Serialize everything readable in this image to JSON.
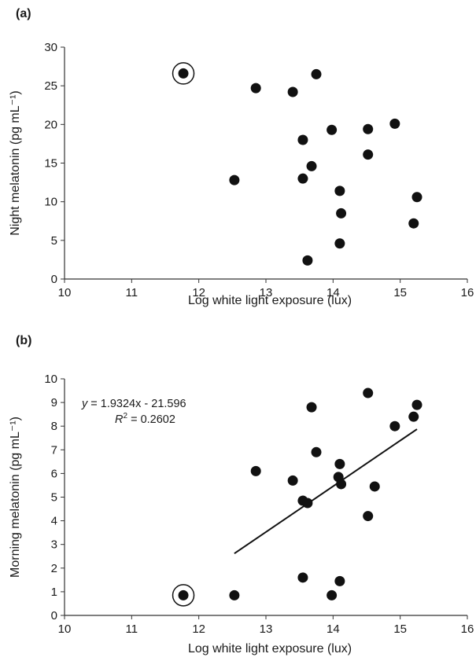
{
  "chart_data": [
    {
      "panel": "(a)",
      "type": "scatter",
      "xlabel": "Log white light exposure (lux)",
      "ylabel": "Night melatonin (pg mL⁻¹)",
      "xlim": [
        10,
        16
      ],
      "ylim": [
        0,
        30
      ],
      "xticks": [
        "10",
        "11",
        "12",
        "13",
        "14",
        "15",
        "16"
      ],
      "yticks": [
        "0",
        "5",
        "10",
        "15",
        "20",
        "25",
        "30"
      ],
      "grid": false,
      "points": [
        {
          "x": 11.77,
          "y": 26.6,
          "circled": true
        },
        {
          "x": 12.53,
          "y": 12.8
        },
        {
          "x": 12.85,
          "y": 24.7
        },
        {
          "x": 13.4,
          "y": 24.2
        },
        {
          "x": 13.55,
          "y": 18.0
        },
        {
          "x": 13.55,
          "y": 13.0
        },
        {
          "x": 13.62,
          "y": 2.4
        },
        {
          "x": 13.68,
          "y": 14.6
        },
        {
          "x": 13.75,
          "y": 26.5
        },
        {
          "x": 13.98,
          "y": 19.3
        },
        {
          "x": 14.1,
          "y": 11.4
        },
        {
          "x": 14.12,
          "y": 8.5
        },
        {
          "x": 14.1,
          "y": 4.6
        },
        {
          "x": 14.52,
          "y": 19.4
        },
        {
          "x": 14.52,
          "y": 16.1
        },
        {
          "x": 14.92,
          "y": 20.1
        },
        {
          "x": 15.2,
          "y": 7.2
        },
        {
          "x": 15.25,
          "y": 10.6
        }
      ]
    },
    {
      "panel": "(b)",
      "type": "scatter",
      "xlabel": "Log white light exposure (lux)",
      "ylabel": "Morning melatonin (pg mL⁻¹)",
      "xlim": [
        10,
        16
      ],
      "ylim": [
        0,
        10
      ],
      "xticks": [
        "10",
        "11",
        "12",
        "13",
        "14",
        "15",
        "16"
      ],
      "yticks": [
        "0",
        "1",
        "2",
        "3",
        "4",
        "5",
        "6",
        "7",
        "8",
        "9",
        "10"
      ],
      "grid": false,
      "equation_y": "y",
      "equation_rhs": " = 1.9324x - 21.596",
      "r2_label": "R",
      "r2_sup": "2",
      "r2_rhs": " = 0.2602",
      "trendline": {
        "slope": 1.9324,
        "intercept": -21.596,
        "x_range": [
          12.53,
          15.25
        ]
      },
      "points": [
        {
          "x": 11.77,
          "y": 0.85,
          "circled": true
        },
        {
          "x": 12.53,
          "y": 0.85
        },
        {
          "x": 12.85,
          "y": 6.1
        },
        {
          "x": 13.4,
          "y": 5.7
        },
        {
          "x": 13.55,
          "y": 4.85
        },
        {
          "x": 13.55,
          "y": 1.6
        },
        {
          "x": 13.62,
          "y": 4.75
        },
        {
          "x": 13.68,
          "y": 8.8
        },
        {
          "x": 13.75,
          "y": 6.9
        },
        {
          "x": 13.98,
          "y": 0.85
        },
        {
          "x": 14.08,
          "y": 5.85
        },
        {
          "x": 14.1,
          "y": 6.4
        },
        {
          "x": 14.12,
          "y": 5.55
        },
        {
          "x": 14.1,
          "y": 1.45
        },
        {
          "x": 14.52,
          "y": 9.4
        },
        {
          "x": 14.52,
          "y": 4.2
        },
        {
          "x": 14.62,
          "y": 5.45
        },
        {
          "x": 14.92,
          "y": 8.0
        },
        {
          "x": 15.2,
          "y": 8.4
        },
        {
          "x": 15.25,
          "y": 8.9
        }
      ]
    }
  ]
}
